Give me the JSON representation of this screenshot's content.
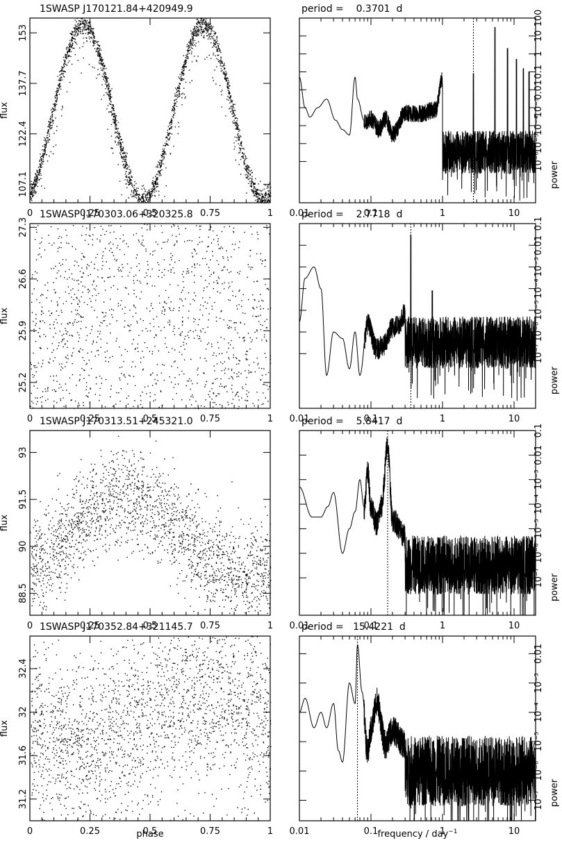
{
  "chart_data": [
    {
      "type": "scatter",
      "title": "1SWASP J170121.84+420949.9",
      "xlabel": "",
      "ylabel": "flux",
      "xlim": [
        0,
        1
      ],
      "ylim": [
        101.5,
        157.5
      ],
      "xticks": [
        "0",
        "0.25",
        "0.5",
        "0.75",
        "1"
      ],
      "yticks": [
        107.1,
        122.4,
        137.7,
        153
      ],
      "ytick_labels": [
        "107.1",
        "122.4",
        "137.7",
        "153"
      ],
      "series": [
        {
          "shape": "double-wave",
          "min_phases": [
            0.47,
            0.97
          ],
          "max_phases": [
            0.22,
            0.72
          ],
          "min_flux": 102.5,
          "max_flux": 155.5,
          "points": 2600
        }
      ]
    },
    {
      "type": "line",
      "title": "period =    0.3701  d",
      "xlabel": "",
      "ylabel": "power",
      "xscale": "log",
      "yscale": "log",
      "xlim": [
        0.01,
        20
      ],
      "ylim": [
        5e-08,
        1000
      ],
      "xticks": [
        "0.01",
        "0.1",
        "1",
        "10"
      ],
      "ytick_labels": [
        "10⁻⁶",
        "10⁻⁵",
        "10⁻⁴",
        "10⁻³",
        "0.01",
        "0.1",
        "1",
        "10",
        "100"
      ],
      "period_line_x": 2.702,
      "series": [
        {
          "low_freq": [
            [
              0.01,
              0.5
            ],
            [
              0.012,
              0.01
            ],
            [
              0.014,
              0.003
            ],
            [
              0.018,
              0.01
            ],
            [
              0.024,
              0.03
            ],
            [
              0.032,
              0.002
            ],
            [
              0.04,
              0.0006
            ],
            [
              0.05,
              0.0003
            ],
            [
              0.06,
              0.5
            ],
            [
              0.065,
              0.03
            ],
            [
              0.08,
              0.002
            ],
            [
              0.1,
              0.003
            ],
            [
              0.13,
              0.0008
            ],
            [
              0.16,
              0.003
            ],
            [
              0.2,
              0.0004
            ],
            [
              0.3,
              0.006
            ],
            [
              0.5,
              0.006
            ],
            [
              0.8,
              0.01
            ],
            [
              1,
              0.6
            ]
          ],
          "peaks": [
            [
              2.702,
              0.8
            ],
            [
              5.404,
              300
            ],
            [
              8.106,
              20
            ],
            [
              10.8,
              5
            ],
            [
              13.5,
              1.5
            ],
            [
              16.2,
              1
            ]
          ],
          "noise_level": 0.0001
        }
      ]
    },
    {
      "type": "scatter",
      "title": "1SWASP J170303.06+320325.8",
      "xlabel": "",
      "ylabel": "flux",
      "xlim": [
        0,
        1
      ],
      "ylim": [
        24.85,
        27.35
      ],
      "xticks": [
        "0",
        "0.25",
        "0.5",
        "0.75",
        "1"
      ],
      "yticks": [
        25.2,
        25.9,
        26.6,
        27.3
      ],
      "ytick_labels": [
        "25.2",
        "25.9",
        "26.6",
        "27.3"
      ],
      "series": [
        {
          "shape": "single-wave",
          "min_phase": 0.1,
          "max_phase": 0.47,
          "min_flux": 25.3,
          "max_flux": 27.0,
          "points": 2400
        }
      ]
    },
    {
      "type": "line",
      "title": "period =    2.7718  d",
      "xlabel": "",
      "ylabel": "power",
      "xscale": "log",
      "yscale": "log",
      "xlim": [
        0.01,
        20
      ],
      "ylim": [
        3e-09,
        1
      ],
      "xticks": [
        "0.01",
        "0.1",
        "1",
        "10"
      ],
      "ytick_labels": [
        "10⁻⁷",
        "10⁻⁶",
        "10⁻⁵",
        "10⁻⁴",
        "10⁻³",
        "0.01",
        "0.1"
      ],
      "period_line_x": 0.3608,
      "series": [
        {
          "low_freq": [
            [
              0.01,
              3e-05
            ],
            [
              0.012,
              0.003
            ],
            [
              0.016,
              0.01
            ],
            [
              0.02,
              0.001
            ],
            [
              0.024,
              1e-07
            ],
            [
              0.03,
              1e-05
            ],
            [
              0.04,
              5e-06
            ],
            [
              0.05,
              2e-07
            ],
            [
              0.06,
              1e-05
            ],
            [
              0.07,
              1e-07
            ],
            [
              0.09,
              3e-05
            ],
            [
              0.12,
              2e-06
            ],
            [
              0.15,
              3e-06
            ],
            [
              0.2,
              2e-05
            ],
            [
              0.25,
              3e-05
            ],
            [
              0.3,
              0.0001
            ]
          ],
          "peaks": [
            [
              0.3608,
              0.3
            ],
            [
              0.72,
              0.0008
            ]
          ],
          "noise_level": 1e-05
        }
      ]
    },
    {
      "type": "scatter",
      "title": "1SWASP J170313.51+245321.0",
      "xlabel": "",
      "ylabel": "flux",
      "xlim": [
        0,
        1
      ],
      "ylim": [
        87.8,
        93.7
      ],
      "xticks": [
        "0",
        "0.25",
        "0.5",
        "0.75",
        "1"
      ],
      "yticks": [
        88.5,
        90,
        91.5,
        93
      ],
      "ytick_labels": [
        "88.5",
        "90",
        "91.5",
        "93"
      ],
      "series": [
        {
          "shape": "single-wave",
          "min_phase": 0.8,
          "max_phase": 0.4,
          "min_flux": 89.0,
          "max_flux": 91.6,
          "points": 2000
        }
      ]
    },
    {
      "type": "line",
      "title": "period =    5.8417  d",
      "xlabel": "",
      "ylabel": "power",
      "xscale": "log",
      "yscale": "log",
      "xlim": [
        0.01,
        20
      ],
      "ylim": [
        3e-08,
        1
      ],
      "xticks": [
        "0.01",
        "0.1",
        "1",
        "10"
      ],
      "ytick_labels": [
        "10⁻⁷",
        "10⁻⁶",
        "10⁻⁵",
        "10⁻⁴",
        "10⁻³",
        "0.01",
        "0.1"
      ],
      "period_line_x": 0.1712,
      "series": [
        {
          "low_freq": [
            [
              0.01,
              0.005
            ],
            [
              0.015,
              0.0003
            ],
            [
              0.02,
              0.0003
            ],
            [
              0.025,
              0.0008
            ],
            [
              0.03,
              0.003
            ],
            [
              0.04,
              1e-05
            ],
            [
              0.05,
              0.0001
            ],
            [
              0.06,
              0.0005
            ],
            [
              0.07,
              0.01
            ],
            [
              0.08,
              0.0008
            ],
            [
              0.09,
              0.03
            ],
            [
              0.1,
              0.001
            ],
            [
              0.12,
              0.0002
            ],
            [
              0.14,
              0.001
            ],
            [
              0.1712,
              0.3
            ],
            [
              0.2,
              0.0003
            ],
            [
              0.3,
              6e-05
            ]
          ],
          "peaks": [],
          "noise_level": 1e-05
        }
      ]
    },
    {
      "type": "scatter",
      "title": "1SWASP J170352.84+321145.7",
      "xlabel": "phase",
      "ylabel": "flux",
      "xlim": [
        0,
        1
      ],
      "ylim": [
        31.0,
        32.7
      ],
      "xticks": [
        "0",
        "0.25",
        "0.5",
        "0.75",
        "1"
      ],
      "yticks": [
        31.2,
        31.6,
        32,
        32.4
      ],
      "ytick_labels": [
        "31.2",
        "31.6",
        "32",
        "32.4"
      ],
      "series": [
        {
          "shape": "single-wave",
          "min_phase": 0.1,
          "max_phase": 0.7,
          "min_flux": 31.7,
          "max_flux": 32.15,
          "points": 2200
        }
      ]
    },
    {
      "type": "line",
      "title": "period =   15.4221  d",
      "xlabel": "frequency  /  day",
      "xlabel_sup": "−1",
      "ylabel": "power",
      "xscale": "log",
      "yscale": "log",
      "xlim": [
        0.01,
        20
      ],
      "ylim": [
        2e-08,
        0.04
      ],
      "xticks": [
        "0.01",
        "0.1",
        "1",
        "10"
      ],
      "ytick_labels": [
        "10⁻⁷",
        "10⁻⁶",
        "10⁻⁵",
        "10⁻⁴",
        "10⁻³",
        "0.01"
      ],
      "period_line_x": 0.0648,
      "series": [
        {
          "low_freq": [
            [
              0.01,
              0.0001
            ],
            [
              0.012,
              0.0003
            ],
            [
              0.016,
              3e-05
            ],
            [
              0.02,
              0.0001
            ],
            [
              0.024,
              3e-05
            ],
            [
              0.03,
              0.0002
            ],
            [
              0.035,
              5e-06
            ],
            [
              0.04,
              2e-06
            ],
            [
              0.05,
              0.001
            ],
            [
              0.06,
              0.0002
            ],
            [
              0.0648,
              0.02
            ],
            [
              0.075,
              0.0005
            ],
            [
              0.09,
              5e-06
            ],
            [
              0.1,
              3e-05
            ],
            [
              0.12,
              0.0003
            ],
            [
              0.16,
              1e-05
            ],
            [
              0.2,
              3e-05
            ],
            [
              0.3,
              1e-05
            ]
          ],
          "peaks": [],
          "noise_level": 3e-06
        }
      ]
    }
  ]
}
